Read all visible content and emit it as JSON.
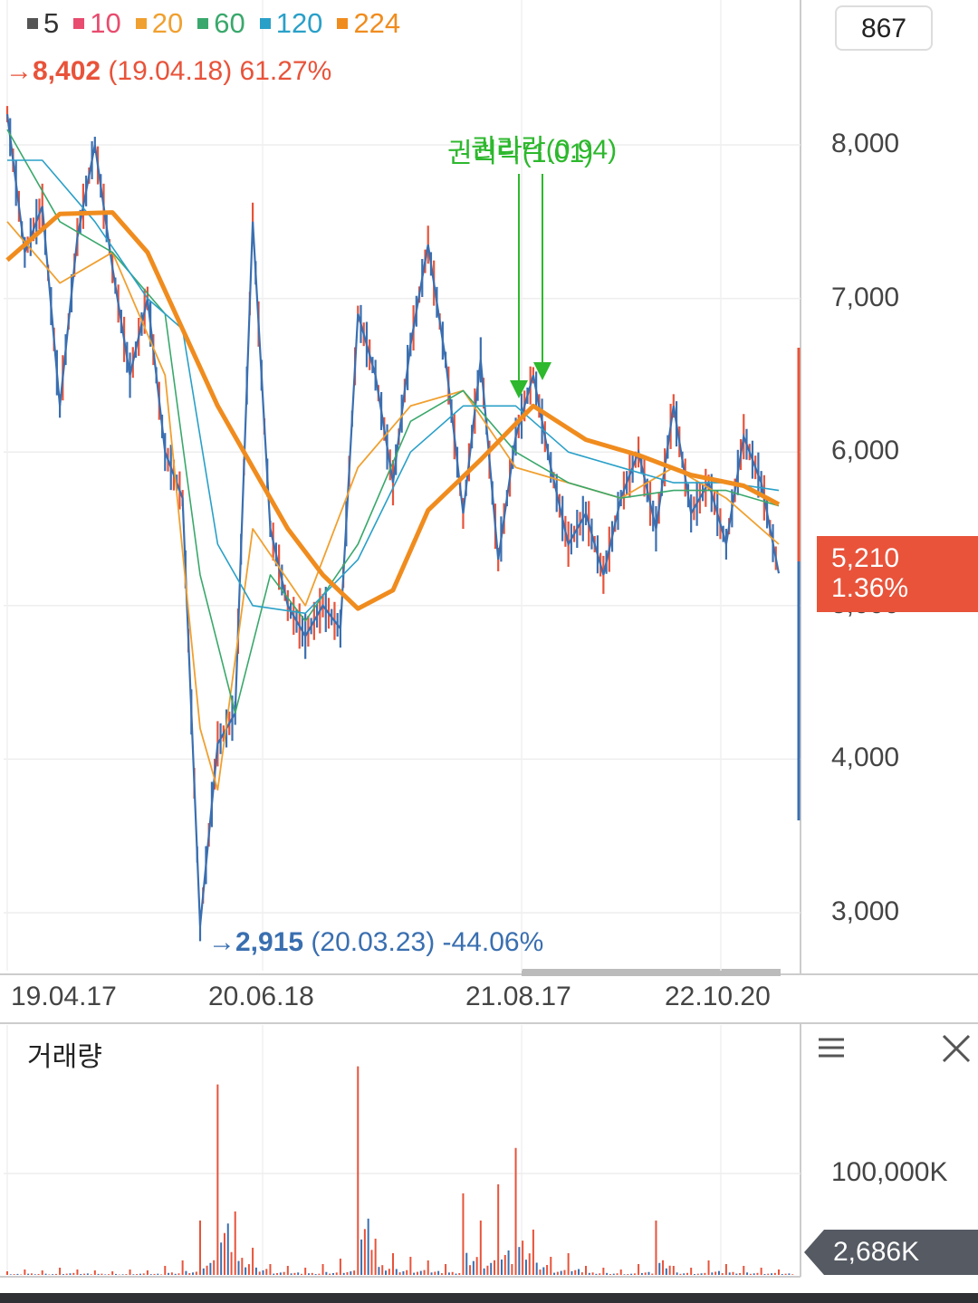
{
  "legend": [
    {
      "label": "5",
      "color": "#555555"
    },
    {
      "label": "10",
      "color": "#e84c6e"
    },
    {
      "label": "20",
      "color": "#f0a030"
    },
    {
      "label": "60",
      "color": "#3aa86c"
    },
    {
      "label": "120",
      "color": "#2aa0c8"
    },
    {
      "label": "224",
      "color": "#f08c1e"
    }
  ],
  "high_marker": {
    "arrow": "→",
    "value": "8,402",
    "date": "(19.04.18)",
    "pct": "61.27%"
  },
  "low_marker": {
    "arrow": "→",
    "value": "2,915",
    "date": "(20.03.23)",
    "pct": "-44.06%"
  },
  "counter_value": "867",
  "events": [
    {
      "label": "권리락(1.01)"
    },
    {
      "label": "권리락(0.94)"
    }
  ],
  "current_price": {
    "value": "5,210",
    "change": "1.36%"
  },
  "volume_panel": {
    "title": "거래량",
    "current": "2,686K"
  },
  "chart_data": {
    "type": "line",
    "subtype": "candlestick-with-moving-averages",
    "y_ticks": [
      "8,000",
      "7,000",
      "6,000",
      "5,000",
      "4,000",
      "3,000"
    ],
    "ylim": [
      2600,
      8600
    ],
    "x_ticks": [
      "19.04.17",
      "20.06.18",
      "21.08.17",
      "22.10.20"
    ],
    "price_series": {
      "name": "price",
      "color": "#3a6fb0",
      "points": [
        [
          "19.04.17",
          8200
        ],
        [
          "19.05",
          7300
        ],
        [
          "19.06",
          7600
        ],
        [
          "19.07",
          6300
        ],
        [
          "19.08",
          7400
        ],
        [
          "19.09",
          8000
        ],
        [
          "19.10",
          7200
        ],
        [
          "19.11",
          6500
        ],
        [
          "19.12",
          7000
        ],
        [
          "20.01",
          6000
        ],
        [
          "20.02",
          5700
        ],
        [
          "20.03.23",
          2915
        ],
        [
          "20.04",
          4100
        ],
        [
          "20.05",
          4300
        ],
        [
          "20.06.18",
          7500
        ],
        [
          "20.07",
          5500
        ],
        [
          "20.08",
          5000
        ],
        [
          "20.09",
          4800
        ],
        [
          "20.10",
          5000
        ],
        [
          "20.11",
          4850
        ],
        [
          "20.12",
          6900
        ],
        [
          "21.01",
          6500
        ],
        [
          "21.02",
          5800
        ],
        [
          "21.03",
          6700
        ],
        [
          "21.04",
          7350
        ],
        [
          "21.05",
          6600
        ],
        [
          "21.06",
          5600
        ],
        [
          "21.07",
          6600
        ],
        [
          "21.08.17",
          5300
        ],
        [
          "21.09",
          6100
        ],
        [
          "21.10",
          6500
        ],
        [
          "21.11",
          5900
        ],
        [
          "21.12",
          5400
        ],
        [
          "22.01",
          5600
        ],
        [
          "22.02",
          5200
        ],
        [
          "22.03",
          5700
        ],
        [
          "22.04",
          6000
        ],
        [
          "22.05",
          5500
        ],
        [
          "22.06",
          6300
        ],
        [
          "22.07",
          5600
        ],
        [
          "22.08",
          5800
        ],
        [
          "22.09",
          5400
        ],
        [
          "22.10.20",
          6100
        ],
        [
          "22.11",
          5800
        ],
        [
          "22.12",
          5210
        ]
      ]
    },
    "ma_series": [
      {
        "name": "20",
        "color": "#f0a030",
        "points": [
          [
            0,
            7500
          ],
          [
            3,
            7100
          ],
          [
            6,
            7300
          ],
          [
            9,
            6500
          ],
          [
            11,
            4200
          ],
          [
            12,
            3800
          ],
          [
            14,
            5500
          ],
          [
            17,
            5000
          ],
          [
            20,
            5900
          ],
          [
            23,
            6300
          ],
          [
            26,
            6400
          ],
          [
            29,
            5900
          ],
          [
            32,
            5800
          ],
          [
            35,
            5700
          ],
          [
            38,
            5900
          ],
          [
            41,
            5700
          ],
          [
            44,
            5400
          ]
        ]
      },
      {
        "name": "60",
        "color": "#3aa86c",
        "points": [
          [
            0,
            8100
          ],
          [
            3,
            7500
          ],
          [
            6,
            7300
          ],
          [
            9,
            6900
          ],
          [
            11,
            5200
          ],
          [
            13,
            4300
          ],
          [
            15,
            5200
          ],
          [
            17,
            4900
          ],
          [
            20,
            5400
          ],
          [
            23,
            6200
          ],
          [
            26,
            6400
          ],
          [
            29,
            6000
          ],
          [
            32,
            5800
          ],
          [
            35,
            5700
          ],
          [
            38,
            5750
          ],
          [
            41,
            5750
          ],
          [
            44,
            5650
          ]
        ]
      },
      {
        "name": "120",
        "color": "#2aa0c8",
        "points": [
          [
            0,
            7900
          ],
          [
            2,
            7900
          ],
          [
            5,
            7500
          ],
          [
            8,
            7000
          ],
          [
            10,
            6800
          ],
          [
            12,
            5400
          ],
          [
            14,
            5000
          ],
          [
            17,
            4950
          ],
          [
            20,
            5300
          ],
          [
            23,
            6000
          ],
          [
            26,
            6300
          ],
          [
            29,
            6300
          ],
          [
            32,
            6000
          ],
          [
            35,
            5900
          ],
          [
            38,
            5800
          ],
          [
            41,
            5800
          ],
          [
            44,
            5750
          ]
        ]
      },
      {
        "name": "224",
        "color": "#f08c1e",
        "points": [
          [
            0,
            7250
          ],
          [
            3,
            7550
          ],
          [
            6,
            7560
          ],
          [
            8,
            7300
          ],
          [
            10,
            6800
          ],
          [
            12,
            6300
          ],
          [
            14,
            5900
          ],
          [
            16,
            5500
          ],
          [
            18,
            5200
          ],
          [
            20,
            4980
          ],
          [
            22,
            5100
          ],
          [
            24,
            5620
          ],
          [
            27,
            5950
          ],
          [
            30,
            6300
          ],
          [
            33,
            6080
          ],
          [
            36,
            5980
          ],
          [
            39,
            5850
          ],
          [
            42,
            5780
          ],
          [
            44,
            5660
          ]
        ]
      }
    ],
    "volume": {
      "yticks": [
        "100,000K"
      ],
      "ylim": [
        0,
        130000
      ],
      "bars": [
        2000,
        3000,
        2500,
        4000,
        3000,
        2500,
        2000,
        3000,
        2500,
        5000,
        8000,
        30000,
        105000,
        35000,
        15000,
        6000,
        5000,
        4000,
        6000,
        9000,
        115000,
        20000,
        12000,
        10000,
        8000,
        6000,
        45000,
        30000,
        50000,
        70000,
        25000,
        10000,
        12000,
        5000,
        4000,
        3000,
        6000,
        30000,
        5000,
        4000,
        8000,
        6000,
        5000,
        4000,
        3000
      ]
    }
  }
}
